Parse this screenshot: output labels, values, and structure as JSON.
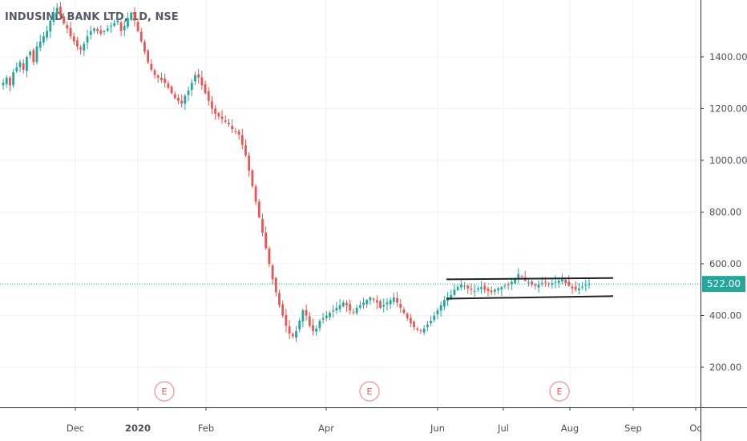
{
  "chart_data": {
    "type": "candlestick",
    "title": "INDUSIND BANK LTD, 1D, NSE",
    "y_ticks": [
      1400,
      1200,
      1000,
      800,
      600,
      400,
      200
    ],
    "y_tick_labels": [
      "1400.00",
      "1200.00",
      "1000.00",
      "800.00",
      "600.00",
      "400.00",
      "200.00"
    ],
    "ylim": [
      45,
      1620
    ],
    "x_labels": [
      {
        "label": "Dec",
        "bold": false
      },
      {
        "label": "2020",
        "bold": true
      },
      {
        "label": "Feb",
        "bold": false
      },
      {
        "label": "Apr",
        "bold": false
      },
      {
        "label": "Jun",
        "bold": false
      },
      {
        "label": "Jul",
        "bold": false
      },
      {
        "label": "Aug",
        "bold": false
      },
      {
        "label": "Sep",
        "bold": false
      },
      {
        "label": "Oc",
        "bold": false
      }
    ],
    "last_price": 522,
    "last_price_label": "522.00",
    "earnings_marker_label": "E",
    "earnings_markers": 3,
    "channel_lines": [
      {
        "start": 540,
        "end": 545
      },
      {
        "start": 465,
        "end": 475
      }
    ],
    "price_path": [
      1300,
      1320,
      1290,
      1340,
      1360,
      1380,
      1350,
      1400,
      1420,
      1380,
      1440,
      1460,
      1480,
      1500,
      1540,
      1570,
      1590,
      1560,
      1530,
      1510,
      1480,
      1460,
      1440,
      1430,
      1450,
      1480,
      1500,
      1510,
      1500,
      1490,
      1500,
      1510,
      1520,
      1530,
      1540,
      1500,
      1520,
      1550,
      1570,
      1540,
      1500,
      1460,
      1420,
      1380,
      1350,
      1330,
      1320,
      1310,
      1300,
      1280,
      1260,
      1240,
      1230,
      1220,
      1250,
      1270,
      1300,
      1330,
      1320,
      1290,
      1260,
      1230,
      1200,
      1180,
      1170,
      1160,
      1150,
      1140,
      1120,
      1110,
      1100,
      1060,
      1020,
      960,
      900,
      840,
      780,
      720,
      660,
      600,
      540,
      490,
      440,
      400,
      360,
      330,
      320,
      340,
      380,
      420,
      400,
      360,
      340,
      350,
      380,
      390,
      400,
      410,
      420,
      430,
      440,
      450,
      440,
      420,
      410,
      430,
      440,
      450,
      460,
      470,
      460,
      450,
      430,
      440,
      450,
      460,
      470,
      450,
      430,
      410,
      390,
      370,
      355,
      345,
      340,
      350,
      365,
      380,
      400,
      420,
      440,
      460,
      470,
      480,
      500,
      510,
      520,
      515,
      505,
      500,
      495,
      505,
      510,
      500,
      495,
      490,
      500,
      505,
      510,
      515,
      520,
      530,
      540,
      560,
      550,
      535,
      530,
      520,
      515,
      520,
      525,
      530,
      520,
      525,
      530,
      535,
      540,
      525,
      515,
      505,
      500,
      505,
      512,
      518,
      522
    ]
  }
}
